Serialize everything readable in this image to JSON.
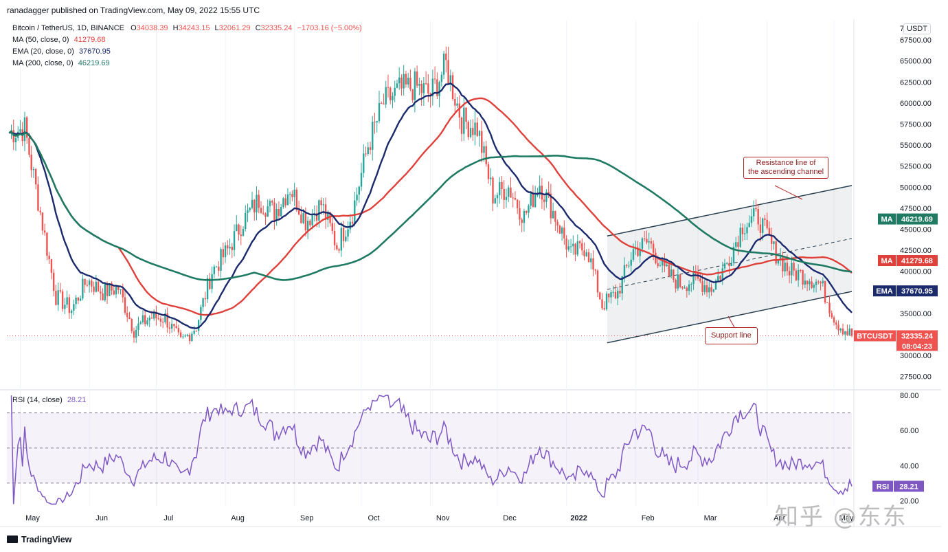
{
  "publisher_line": "ranadagger published on TradingView.com, May 09, 2022 15:55 UTC",
  "symbol": {
    "name": "Bitcoin / TetherUS, 1D, BINANCE",
    "open_label": "O",
    "open": "34038.39",
    "high_label": "H",
    "high": "34243.15",
    "low_label": "L",
    "low": "32061.29",
    "close_label": "C",
    "close": "32335.24",
    "change": "−1703.16 (−5.00%)"
  },
  "indicators": [
    {
      "label": "MA (50, close, 0)",
      "value": "41279.68",
      "color": "#e0403a"
    },
    {
      "label": "EMA (20, close, 0)",
      "value": "37670.95",
      "color": "#1a2a6c"
    },
    {
      "label": "MA (200, close, 0)",
      "value": "46219.69",
      "color": "#1f7a63"
    }
  ],
  "currency_button": "USDT",
  "price_axis_ticks": [
    "67500.00",
    "65000.00",
    "62500.00",
    "60000.00",
    "57500.00",
    "55000.00",
    "52500.00",
    "50000.00",
    "47500.00",
    "45000.00",
    "42500.00",
    "40000.00",
    "35000.00",
    "30000.00",
    "27500.00"
  ],
  "price_axis_top_cut": "7",
  "price_tags": {
    "ma200": {
      "label": "MA",
      "value": "46219.69",
      "color": "#1f7a63"
    },
    "ma50": {
      "label": "MA",
      "value": "41279.68",
      "color": "#e0403a"
    },
    "ema": {
      "label": "EMA",
      "value": "37670.95",
      "color": "#1a2a6c"
    },
    "price": {
      "label": "BTCUSDT",
      "value": "32335.24",
      "timer": "08:04:23",
      "color": "#ef5350"
    }
  },
  "rsi": {
    "label": "RSI (14, close)",
    "value": "28.21",
    "tag": "RSI",
    "ticks": [
      "80.00",
      "60.00",
      "40.00"
    ],
    "bottom_cut": "20.00",
    "color": "#7e57c2"
  },
  "months": [
    "May",
    "Jun",
    "Jul",
    "Aug",
    "Sep",
    "Oct",
    "Nov",
    "Dec",
    "2022",
    "Feb",
    "Mar",
    "Apr",
    "May"
  ],
  "annotations": {
    "resistance": [
      "Resistance line of",
      "the ascending channel"
    ],
    "support": "Support line"
  },
  "footer_logo": "TradingView",
  "watermark": "知乎 @东东",
  "chart_data": {
    "type": "candlestick",
    "title": "Bitcoin / TetherUS, 1D, BINANCE",
    "ylabel": "USDT",
    "ylim": [
      26000,
      70000
    ],
    "x_range": [
      "2021-04-25",
      "2022-05-09"
    ],
    "series_weekly_close": {
      "x": [
        "2021-04-26",
        "2021-05-03",
        "2021-05-10",
        "2021-05-17",
        "2021-05-24",
        "2021-05-31",
        "2021-06-07",
        "2021-06-14",
        "2021-06-21",
        "2021-06-28",
        "2021-07-05",
        "2021-07-12",
        "2021-07-19",
        "2021-07-26",
        "2021-08-02",
        "2021-08-09",
        "2021-08-16",
        "2021-08-23",
        "2021-08-30",
        "2021-09-06",
        "2021-09-13",
        "2021-09-20",
        "2021-09-27",
        "2021-10-04",
        "2021-10-11",
        "2021-10-18",
        "2021-10-25",
        "2021-11-01",
        "2021-11-08",
        "2021-11-15",
        "2021-11-22",
        "2021-11-29",
        "2021-12-06",
        "2021-12-13",
        "2021-12-20",
        "2021-12-27",
        "2022-01-03",
        "2022-01-10",
        "2022-01-17",
        "2022-01-24",
        "2022-01-31",
        "2022-02-07",
        "2022-02-14",
        "2022-02-21",
        "2022-02-28",
        "2022-03-07",
        "2022-03-14",
        "2022-03-21",
        "2022-03-28",
        "2022-04-04",
        "2022-04-11",
        "2022-04-18",
        "2022-04-25",
        "2022-05-02",
        "2022-05-09"
      ],
      "values": [
        56500,
        57000,
        47000,
        37000,
        35500,
        39000,
        37500,
        38000,
        33000,
        34500,
        34500,
        31500,
        33500,
        40000,
        42500,
        46000,
        48500,
        47000,
        50000,
        46000,
        48000,
        43000,
        47000,
        55000,
        60000,
        61500,
        62000,
        61000,
        64500,
        58000,
        57000,
        49000,
        50000,
        46500,
        50500,
        46500,
        42000,
        43000,
        36000,
        37500,
        42500,
        43500,
        40000,
        38500,
        39000,
        38000,
        41000,
        45500,
        46500,
        42500,
        40000,
        39500,
        38500,
        34000,
        32335
      ]
    },
    "ma50_last": 41279.68,
    "ema20_last": 37670.95,
    "ma200_last": 46219.69,
    "last_close": 32335.24,
    "ascending_channel": {
      "resistance": [
        [
          "2022-01-10",
          44200
        ],
        [
          "2022-05-09",
          50200
        ]
      ],
      "support": [
        [
          "2022-01-10",
          31500
        ],
        [
          "2022-05-09",
          37600
        ]
      ]
    },
    "rsi_series": {
      "ylim": [
        20,
        80
      ],
      "overbought": 70,
      "oversold": 30,
      "last": 28.21
    }
  }
}
